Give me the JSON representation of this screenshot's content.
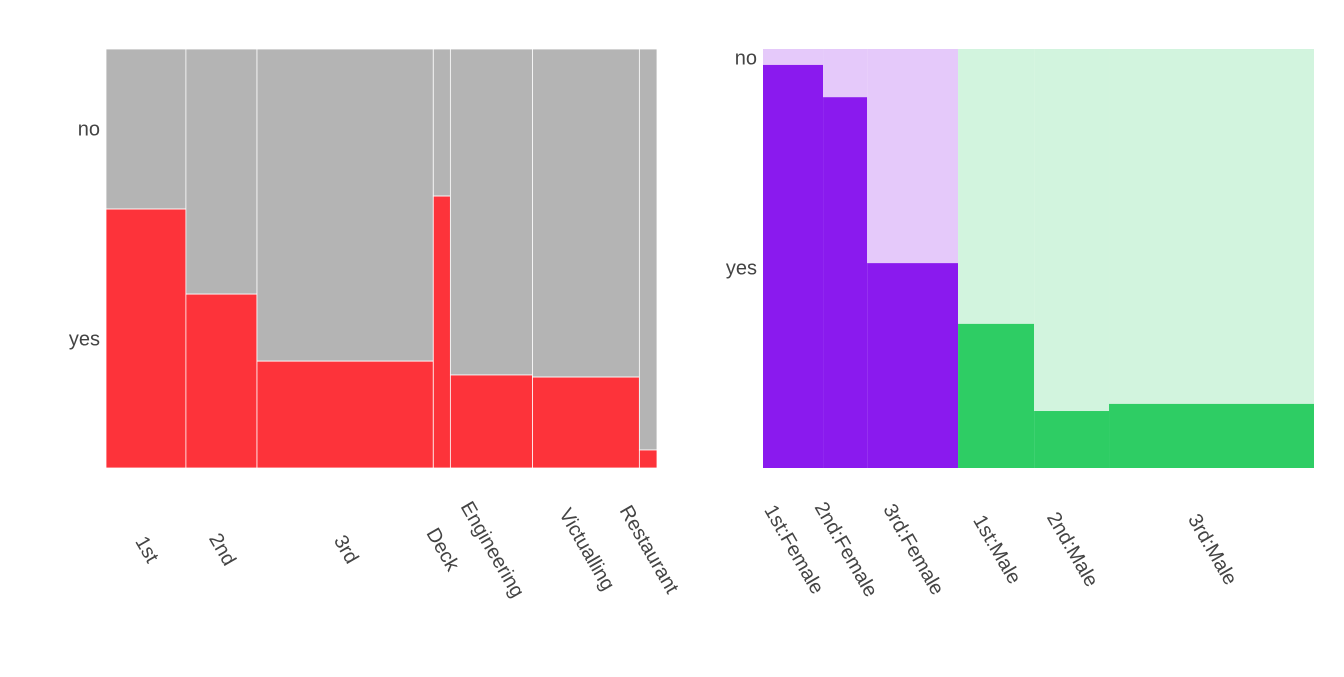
{
  "chart_data": [
    {
      "type": "mosaic",
      "title": "",
      "xlabel": "",
      "ylabel": "",
      "categories": [
        "1st",
        "2nd",
        "3rd",
        "Deck",
        "Engineering",
        "Victualling",
        "Restaurant"
      ],
      "width_fractions": [
        0.145,
        0.129,
        0.32,
        0.031,
        0.149,
        0.194,
        0.032
      ],
      "yes_fractions": [
        0.618,
        0.415,
        0.255,
        0.649,
        0.222,
        0.217,
        0.043
      ],
      "y_tick_labels": [
        "no",
        "yes"
      ],
      "colors": {
        "yes": "#fd333a",
        "no": "#b4b4b4"
      }
    },
    {
      "type": "mosaic",
      "title": "",
      "xlabel": "",
      "ylabel": "",
      "categories": [
        "1st:Female",
        "2nd:Female",
        "3rd:Female",
        "1st:Male",
        "2nd:Male",
        "3rd:Male"
      ],
      "width_fractions": [
        0.109,
        0.08,
        0.165,
        0.138,
        0.136,
        0.372
      ],
      "yes_fractions": [
        0.962,
        0.885,
        0.489,
        0.344,
        0.136,
        0.153
      ],
      "y_tick_labels": [
        "no",
        "yes"
      ],
      "colors": {
        "Female_yes": "#8a1aee",
        "Female_no": "#e5c9fa",
        "Male_yes": "#2ecd64",
        "Male_no": "#d2f4de"
      }
    }
  ]
}
